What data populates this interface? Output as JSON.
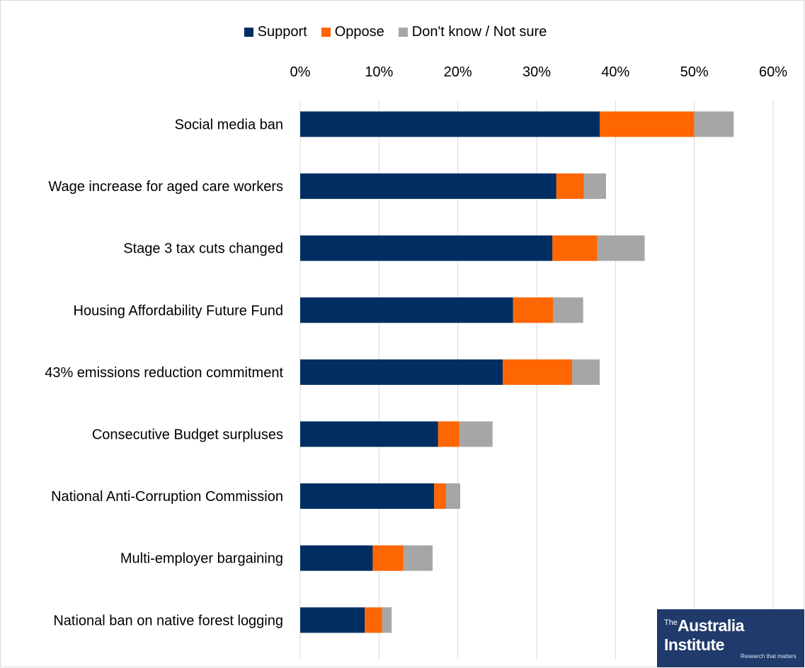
{
  "colors": {
    "support": "#002d62",
    "oppose": "#fe6601",
    "dont_know": "#a6a6a6",
    "grid": "#d9d9d9",
    "logo_bg": "#1f3a6b"
  },
  "chart_data": {
    "type": "bar",
    "orientation": "horizontal",
    "stacked": true,
    "categories": [
      "Social media ban",
      "Wage increase for aged care workers",
      "Stage 3 tax cuts changed",
      "Housing Affordability Future Fund",
      "43% emissions reduction commitment",
      "Consecutive Budget surpluses",
      "National Anti-Corruption Commission",
      "Multi-employer bargaining",
      "National ban on native forest logging"
    ],
    "series": [
      {
        "name": "Support",
        "values": [
          38,
          32.5,
          32,
          27,
          25.7,
          17.5,
          17,
          9.2,
          8.2
        ]
      },
      {
        "name": "Oppose",
        "values": [
          12,
          3.5,
          5.7,
          5.1,
          8.8,
          2.7,
          1.5,
          3.9,
          2.2
        ]
      },
      {
        "name": "Don't know / Not sure",
        "values": [
          5,
          2.8,
          6,
          3.8,
          3.5,
          4.2,
          1.8,
          3.7,
          1.2
        ]
      }
    ],
    "x_ticks": [
      "0%",
      "10%",
      "20%",
      "30%",
      "40%",
      "50%",
      "60%"
    ],
    "xlim": [
      0,
      60
    ],
    "x_axis_position": "top",
    "grid": true,
    "legend_position": "top"
  },
  "logo": {
    "superscript": "The",
    "name": "Australia Institute",
    "tagline": "Research that matters"
  }
}
